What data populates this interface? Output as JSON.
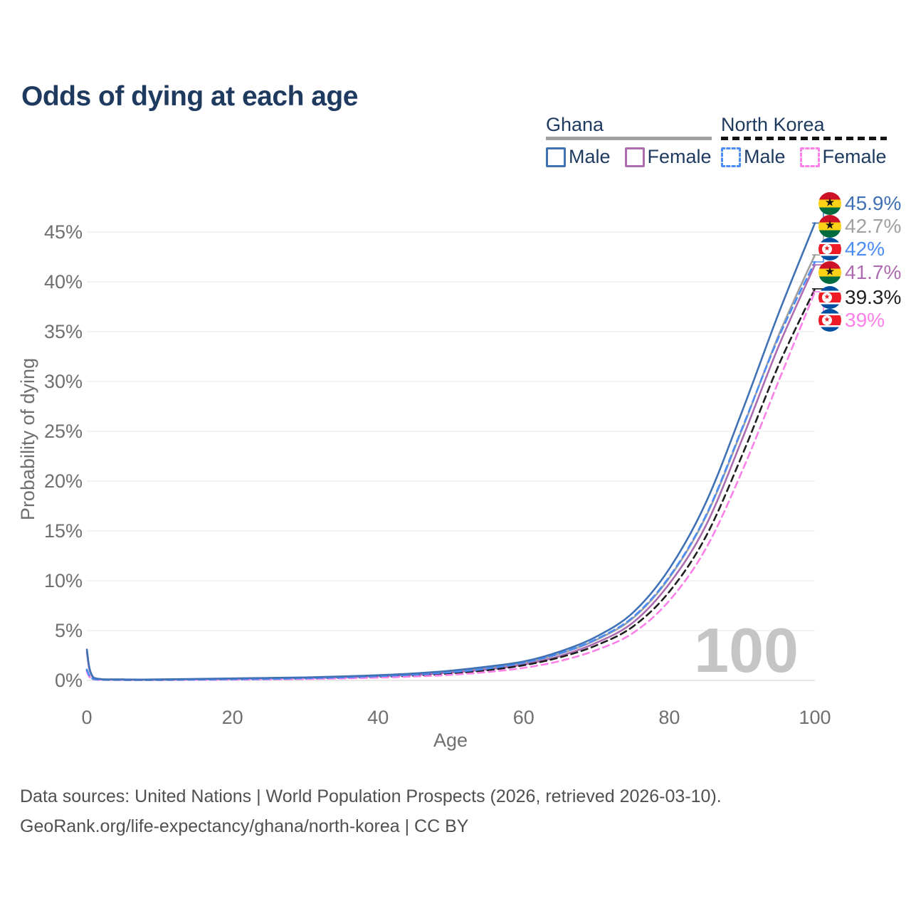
{
  "page": {
    "title": "Odds of dying at each age"
  },
  "legend": {
    "groups": [
      {
        "id": "ghana",
        "label": "Ghana",
        "underline_style": "solid",
        "underline_color": "#a0a0a0",
        "items": [
          {
            "label": "Male",
            "swatch_color": "#4071b5",
            "swatch_style": "solid"
          },
          {
            "label": "Female",
            "swatch_color": "#ad6cb0",
            "swatch_style": "solid"
          }
        ]
      },
      {
        "id": "north-korea",
        "label": "North Korea",
        "underline_style": "dashed",
        "underline_color": "#141414",
        "items": [
          {
            "label": "Male",
            "swatch_color": "#4b8cf5",
            "swatch_style": "dashed"
          },
          {
            "label": "Female",
            "swatch_color": "#fb80e8",
            "swatch_style": "dashed"
          }
        ]
      }
    ]
  },
  "end_labels": [
    {
      "flag": "ghana",
      "text": "45.9%",
      "color": "#4071b5"
    },
    {
      "flag": "ghana",
      "text": "42.7%",
      "color": "#a0a0a0"
    },
    {
      "flag": "north-korea",
      "text": "42%",
      "color": "#4b8cf5"
    },
    {
      "flag": "ghana",
      "text": "41.7%",
      "color": "#ad6cb0"
    },
    {
      "flag": "north-korea",
      "text": "39.3%",
      "color": "#1f1f1f"
    },
    {
      "flag": "north-korea",
      "text": "39%",
      "color": "#fb80e8"
    }
  ],
  "watermark": "100",
  "footer": {
    "line1": "Data sources: United Nations | World Population Prospects (2026, retrieved 2026-03-10).",
    "line2": "GeoRank.org/life-expectancy/ghana/north-korea | CC BY"
  },
  "chart_data": {
    "type": "line",
    "title": "Odds of dying at each age",
    "xlabel": "Age",
    "ylabel": "Probability of dying",
    "xlim": [
      0,
      100
    ],
    "ylim_pct": [
      0,
      47.5
    ],
    "x_ticks": [
      0,
      20,
      40,
      60,
      80,
      100
    ],
    "y_ticks": [
      "0%",
      "5%",
      "10%",
      "15%",
      "20%",
      "25%",
      "30%",
      "35%",
      "40%",
      "45%"
    ],
    "grid": "horizontal",
    "legend_position": "top-right",
    "ages": [
      0,
      1,
      5,
      10,
      15,
      20,
      25,
      30,
      35,
      40,
      45,
      50,
      55,
      60,
      65,
      70,
      75,
      80,
      85,
      90,
      95,
      100
    ],
    "series": [
      {
        "name": "Ghana Male",
        "color": "#4071b5",
        "style": "solid",
        "end_value_pct": 45.9,
        "values_pct": [
          3.1,
          0.25,
          0.1,
          0.1,
          0.15,
          0.2,
          0.25,
          0.3,
          0.4,
          0.52,
          0.7,
          0.98,
          1.38,
          1.9,
          2.9,
          4.4,
          6.8,
          11.2,
          17.8,
          27.0,
          36.8,
          45.9
        ]
      },
      {
        "name": "Ghana",
        "color": "#a0a0a0",
        "style": "solid",
        "end_value_pct": 42.7,
        "values_pct": [
          2.95,
          0.23,
          0.09,
          0.09,
          0.13,
          0.18,
          0.22,
          0.27,
          0.36,
          0.47,
          0.63,
          0.88,
          1.25,
          1.75,
          2.68,
          4.08,
          6.25,
          10.3,
          16.4,
          25.2,
          34.6,
          42.7
        ]
      },
      {
        "name": "North Korea Male",
        "color": "#4b8cf5",
        "style": "dashed",
        "end_value_pct": 42.0,
        "values_pct": [
          1.1,
          0.12,
          0.05,
          0.05,
          0.08,
          0.12,
          0.16,
          0.22,
          0.3,
          0.42,
          0.58,
          0.82,
          1.18,
          1.78,
          2.72,
          4.15,
          6.35,
          10.4,
          16.5,
          25.3,
          34.4,
          42.0
        ]
      },
      {
        "name": "Ghana Female",
        "color": "#ad6cb0",
        "style": "solid",
        "end_value_pct": 41.7,
        "values_pct": [
          2.75,
          0.21,
          0.08,
          0.08,
          0.11,
          0.15,
          0.19,
          0.23,
          0.31,
          0.42,
          0.56,
          0.78,
          1.1,
          1.6,
          2.45,
          3.78,
          5.8,
          9.7,
          15.5,
          24.2,
          33.5,
          41.7
        ]
      },
      {
        "name": "North Korea",
        "color": "#1f1f1f",
        "style": "dashed",
        "end_value_pct": 39.3,
        "values_pct": [
          1.0,
          0.11,
          0.04,
          0.04,
          0.07,
          0.1,
          0.13,
          0.18,
          0.25,
          0.35,
          0.48,
          0.7,
          1.02,
          1.52,
          2.32,
          3.52,
          5.4,
          8.9,
          14.4,
          22.6,
          31.6,
          39.3
        ]
      },
      {
        "name": "North Korea Female",
        "color": "#fb80e8",
        "style": "dashed",
        "end_value_pct": 39.0,
        "values_pct": [
          0.85,
          0.09,
          0.04,
          0.04,
          0.06,
          0.08,
          0.11,
          0.14,
          0.2,
          0.28,
          0.39,
          0.56,
          0.84,
          1.26,
          1.95,
          3.05,
          4.75,
          8.0,
          13.2,
          21.0,
          30.0,
          39.0
        ]
      }
    ],
    "flag_colors": {
      "ghana": {
        "red": "#ce1126",
        "gold": "#fcd116",
        "green": "#006b3f",
        "star": "#111111"
      },
      "north_korea": {
        "blue": "#024fa2",
        "red": "#ed1c27",
        "white": "#ffffff"
      }
    }
  }
}
